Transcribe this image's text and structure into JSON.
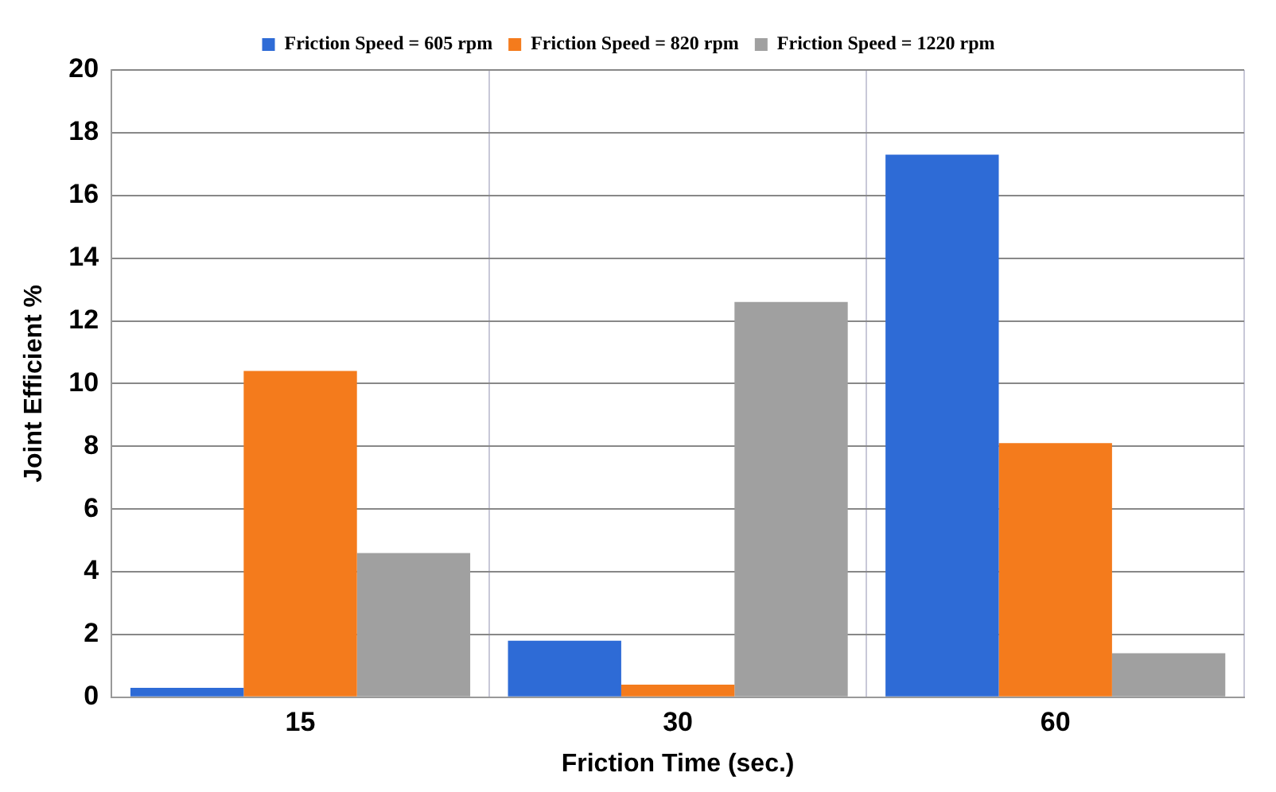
{
  "chart_data": {
    "type": "bar",
    "xlabel": "Friction Time (sec.)",
    "ylabel": "Joint Efficient %",
    "categories": [
      "15",
      "30",
      "60"
    ],
    "series": [
      {
        "name": "Friction Speed = 605 rpm",
        "color": "#2e6bd6",
        "values": [
          0.3,
          1.8,
          17.3
        ]
      },
      {
        "name": "Friction Speed = 820 rpm",
        "color": "#f47b1c",
        "values": [
          10.4,
          0.4,
          8.1
        ]
      },
      {
        "name": "Friction Speed = 1220 rpm",
        "color": "#a0a0a0",
        "values": [
          4.6,
          12.6,
          1.4
        ]
      }
    ],
    "ylim": [
      0,
      20
    ],
    "yticks": [
      0,
      2,
      4,
      6,
      8,
      10,
      12,
      14,
      16,
      18,
      20
    ],
    "grid": true,
    "legend": "top"
  }
}
